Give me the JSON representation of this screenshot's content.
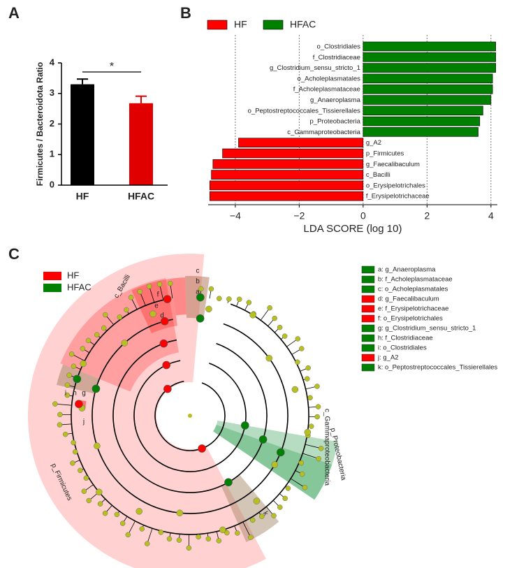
{
  "chart_data": [
    {
      "type": "bar",
      "panel": "A",
      "ylabel": "Firmicutes / Bacteroidota Ratio",
      "annotation": "*",
      "categories": [
        "HF",
        "HFAC"
      ],
      "values": [
        3.3,
        2.68
      ],
      "errors": [
        0.17,
        0.23
      ],
      "colors": [
        "#000000",
        "#e00000"
      ],
      "ylim": [
        0,
        4
      ],
      "yticks": [
        0,
        1,
        2,
        3,
        4
      ]
    },
    {
      "type": "hbar",
      "panel": "B",
      "xlabel": "LDA SCORE (log 10)",
      "legend": "top-left",
      "grid": true,
      "categories": [
        "o_Clostridiales",
        "f_Clostridiaceae",
        "g_Clostridium_sensu_stricto_1",
        "o_Acholeplasmatales",
        "f_Acholeplasmataceae",
        "g_Anaeroplasma",
        "o_Peptostreptococcales_Tissierellales",
        "p_Proteobacteria",
        "c_Gammaproteobacteria",
        "g_A2",
        "p_Firmicutes",
        "g_Faecalibaculum",
        "c_Bacilli",
        "o_Erysipelotrichales",
        "f_Erysipelotrichaceae"
      ],
      "series": [
        {
          "name": "HF",
          "color": "#ff0000",
          "values": [
            null,
            null,
            null,
            null,
            null,
            null,
            null,
            null,
            null,
            -3.9,
            -4.4,
            -4.7,
            -4.75,
            -4.8,
            -4.8
          ]
        },
        {
          "name": "HFAC",
          "color": "#008000",
          "values": [
            4.15,
            4.15,
            4.15,
            4.05,
            4.05,
            4.0,
            3.75,
            3.65,
            3.6,
            null,
            null,
            null,
            null,
            null,
            null
          ]
        }
      ],
      "xlim": [
        -4.85,
        4.2
      ],
      "xticks": [
        {
          "value": -4,
          "label": "−4"
        },
        {
          "value": -2,
          "label": "−2"
        },
        0,
        2,
        4
      ]
    }
  ],
  "cladogram": {
    "panel": "C",
    "legend": [
      {
        "name": "HF",
        "color": "#ff0000"
      },
      {
        "name": "HFAC",
        "color": "#008000"
      }
    ],
    "key": [
      {
        "text": "a: g_Anaeroplasma",
        "color": "#008000"
      },
      {
        "text": "b: f_Acholeplasmataceae",
        "color": "#008000"
      },
      {
        "text": "c: o_Acholeplasmatales",
        "color": "#008000"
      },
      {
        "text": "d: g_Faecalibaculum",
        "color": "#ff0000"
      },
      {
        "text": "e: f_Erysipelotrichaceae",
        "color": "#ff0000"
      },
      {
        "text": "f: o_Erysipelotrichales",
        "color": "#ff0000"
      },
      {
        "text": "g: g_Clostridium_sensu_stricto_1",
        "color": "#008000"
      },
      {
        "text": "h: f_Clostridiaceae",
        "color": "#008000"
      },
      {
        "text": "i: o_Clostridiales",
        "color": "#008000"
      },
      {
        "text": "j: g_A2",
        "color": "#ff0000"
      },
      {
        "text": "k: o_Peptostreptococcales_Tissierellales",
        "color": "#008000"
      }
    ],
    "labels": [
      "c_Bacilli",
      "f",
      "e",
      "d",
      "c",
      "b",
      "a",
      "i",
      "h",
      "g",
      "j",
      "k",
      "p_Firmicutes",
      "c_Gammaproteobacteria",
      "p_Proteobacteria"
    ]
  }
}
